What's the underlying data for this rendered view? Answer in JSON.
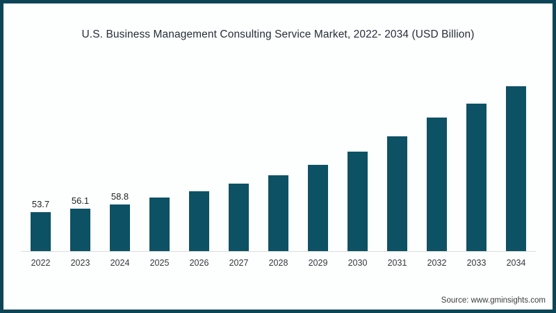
{
  "frame": {
    "border_color": "#0e4556",
    "background": "#fdfefe"
  },
  "source_note": "Source: www.gminsights.com",
  "chart_data": {
    "type": "bar",
    "title": "U.S. Business Management Consulting Service Market, 2022- 2034 (USD Billion)",
    "categories": [
      "2022",
      "2023",
      "2024",
      "2025",
      "2026",
      "2027",
      "2028",
      "2029",
      "2030",
      "2031",
      "2032",
      "2033",
      "2034"
    ],
    "values": [
      53.7,
      56.1,
      58.8,
      63.2,
      67.6,
      72.7,
      78.3,
      85.2,
      94.0,
      104.2,
      116.8,
      126.0,
      137.6
    ],
    "data_labels": [
      "53.7",
      "56.1",
      "58.8",
      "",
      "",
      "",
      "",
      "",
      "",
      "",
      "",
      "",
      ""
    ],
    "xlabel": "",
    "ylabel": "",
    "ylim": [
      27.7,
      151
    ],
    "grid": false,
    "legend": false,
    "bar_color": "#0d5164",
    "axis_line_color": "#dcdcdc",
    "label_color": "#1f1f1f",
    "tick_label_color": "#33373c"
  }
}
